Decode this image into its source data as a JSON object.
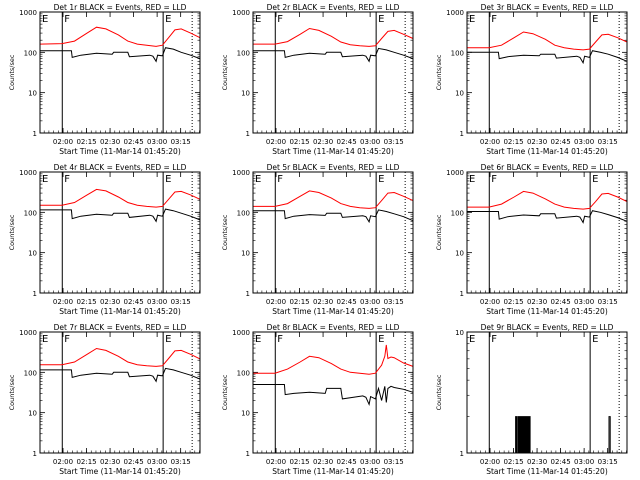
{
  "figure": {
    "panel_title_suffix": "BLACK = Events, RED = LLD",
    "xlabel": "Start Time (11-Mar-14 01:45:20)",
    "ylabel": "Counts/sec",
    "series_colors": {
      "events": "#000000",
      "lld": "#ff0000"
    },
    "x_tick_labels": [
      "02:00",
      "02:15",
      "02:30",
      "02:45",
      "03:00",
      "03:15"
    ],
    "x_tick_minutes": [
      14.67,
      29.67,
      44.67,
      59.67,
      74.67,
      89.67
    ],
    "xlim_minutes": [
      0,
      102
    ],
    "y_scale": "log",
    "markers": [
      {
        "label": "E",
        "minute": 0,
        "style": "dotted"
      },
      {
        "label": "F",
        "minute": 14.2,
        "style": "solid"
      },
      {
        "label": "E",
        "minute": 78.5,
        "style": "solid"
      },
      {
        "label": "",
        "minute": 97,
        "style": "dotted"
      }
    ]
  },
  "chart_data": [
    {
      "type": "line",
      "title": "Det 1r BLACK = Events, RED = LLD",
      "ylim": [
        1,
        1000
      ],
      "y_tick_labels": [
        "1",
        "10",
        "100",
        "1000"
      ],
      "series": [
        {
          "name": "Events",
          "x": [
            0,
            12,
            14.5,
            20,
            20.5,
            26,
            36,
            46,
            47,
            56,
            57,
            70,
            72,
            74,
            75,
            78,
            80,
            85,
            90,
            96,
            102
          ],
          "y": [
            110,
            110,
            110,
            110,
            75,
            85,
            95,
            90,
            100,
            100,
            78,
            85,
            80,
            60,
            85,
            82,
            130,
            120,
            100,
            85,
            70
          ]
        },
        {
          "name": "LLD",
          "x": [
            0,
            14,
            22,
            30,
            36,
            42,
            50,
            56,
            62,
            68,
            74,
            78,
            82,
            86,
            90,
            96,
            102
          ],
          "y": [
            160,
            165,
            190,
            300,
            420,
            380,
            270,
            190,
            160,
            150,
            140,
            150,
            230,
            360,
            380,
            300,
            230
          ]
        }
      ]
    },
    {
      "type": "line",
      "title": "Det 2r BLACK = Events, RED = LLD",
      "ylim": [
        1,
        1000
      ],
      "y_tick_labels": [
        "1",
        "10",
        "100",
        "1000"
      ],
      "series": [
        {
          "name": "Events",
          "x": [
            0,
            12,
            14.5,
            20,
            20.5,
            26,
            36,
            46,
            47,
            56,
            57,
            70,
            72,
            74,
            75,
            78,
            80,
            85,
            90,
            96,
            102
          ],
          "y": [
            110,
            110,
            110,
            110,
            75,
            85,
            95,
            90,
            100,
            100,
            78,
            85,
            80,
            60,
            85,
            82,
            125,
            115,
            100,
            85,
            70
          ]
        },
        {
          "name": "LLD",
          "x": [
            0,
            14,
            22,
            30,
            36,
            42,
            50,
            56,
            62,
            68,
            74,
            78,
            82,
            86,
            90,
            96,
            102
          ],
          "y": [
            160,
            160,
            185,
            280,
            390,
            350,
            250,
            180,
            155,
            145,
            140,
            145,
            220,
            330,
            350,
            280,
            220
          ]
        }
      ]
    },
    {
      "type": "line",
      "title": "Det 3r BLACK = Events, RED = LLD",
      "ylim": [
        1,
        1000
      ],
      "y_tick_labels": [
        "1",
        "10",
        "100",
        "1000"
      ],
      "series": [
        {
          "name": "Events",
          "x": [
            0,
            12,
            14.5,
            20,
            20.5,
            26,
            36,
            46,
            47,
            56,
            57,
            70,
            72,
            74,
            75,
            78,
            80,
            85,
            90,
            96,
            102
          ],
          "y": [
            100,
            100,
            100,
            100,
            70,
            78,
            85,
            82,
            90,
            90,
            72,
            80,
            75,
            55,
            80,
            75,
            110,
            100,
            90,
            75,
            60
          ]
        },
        {
          "name": "LLD",
          "x": [
            0,
            14,
            22,
            30,
            36,
            42,
            50,
            56,
            62,
            68,
            74,
            78,
            82,
            86,
            90,
            96,
            102
          ],
          "y": [
            130,
            130,
            150,
            230,
            320,
            290,
            210,
            150,
            130,
            120,
            115,
            120,
            180,
            270,
            280,
            230,
            180
          ]
        }
      ]
    },
    {
      "type": "line",
      "title": "Det 4r BLACK = Events, RED = LLD",
      "ylim": [
        1,
        1000
      ],
      "y_tick_labels": [
        "1",
        "10",
        "100",
        "1000"
      ],
      "series": [
        {
          "name": "Events",
          "x": [
            0,
            12,
            14.5,
            20,
            20.5,
            26,
            36,
            46,
            47,
            56,
            57,
            70,
            72,
            74,
            75,
            78,
            80,
            85,
            90,
            96,
            102
          ],
          "y": [
            115,
            115,
            115,
            115,
            70,
            80,
            90,
            85,
            95,
            95,
            75,
            85,
            80,
            60,
            85,
            80,
            120,
            110,
            95,
            80,
            65
          ]
        },
        {
          "name": "LLD",
          "x": [
            0,
            14,
            22,
            30,
            36,
            42,
            50,
            56,
            62,
            68,
            74,
            78,
            82,
            86,
            90,
            96,
            102
          ],
          "y": [
            150,
            150,
            175,
            270,
            370,
            340,
            240,
            175,
            150,
            140,
            135,
            140,
            210,
            320,
            330,
            270,
            210
          ]
        }
      ]
    },
    {
      "type": "line",
      "title": "Det 5r BLACK = Events, RED = LLD",
      "ylim": [
        1,
        1000
      ],
      "y_tick_labels": [
        "1",
        "10",
        "100",
        "1000"
      ],
      "series": [
        {
          "name": "Events",
          "x": [
            0,
            12,
            14.5,
            20,
            20.5,
            26,
            36,
            46,
            47,
            56,
            57,
            70,
            72,
            74,
            75,
            78,
            80,
            85,
            90,
            96,
            102
          ],
          "y": [
            110,
            110,
            110,
            110,
            70,
            80,
            88,
            84,
            95,
            95,
            75,
            82,
            78,
            58,
            82,
            78,
            115,
            105,
            92,
            78,
            62
          ]
        },
        {
          "name": "LLD",
          "x": [
            0,
            14,
            22,
            30,
            36,
            42,
            50,
            56,
            62,
            68,
            74,
            78,
            82,
            86,
            90,
            96,
            102
          ],
          "y": [
            140,
            140,
            165,
            250,
            340,
            310,
            225,
            165,
            140,
            130,
            125,
            130,
            195,
            300,
            310,
            250,
            195
          ]
        }
      ]
    },
    {
      "type": "line",
      "title": "Det 6r BLACK = Events, RED = LLD",
      "ylim": [
        1,
        1000
      ],
      "y_tick_labels": [
        "1",
        "10",
        "100",
        "1000"
      ],
      "series": [
        {
          "name": "Events",
          "x": [
            0,
            12,
            14.5,
            20,
            20.5,
            26,
            36,
            46,
            47,
            56,
            57,
            70,
            72,
            74,
            75,
            78,
            80,
            85,
            90,
            96,
            102
          ],
          "y": [
            105,
            105,
            105,
            105,
            68,
            78,
            86,
            82,
            92,
            92,
            72,
            80,
            76,
            56,
            80,
            76,
            110,
            100,
            88,
            74,
            60
          ]
        },
        {
          "name": "LLD",
          "x": [
            0,
            14,
            22,
            30,
            36,
            42,
            50,
            56,
            62,
            68,
            74,
            78,
            82,
            86,
            90,
            96,
            102
          ],
          "y": [
            135,
            135,
            160,
            240,
            330,
            300,
            215,
            160,
            135,
            125,
            120,
            125,
            185,
            285,
            295,
            240,
            185
          ]
        }
      ]
    },
    {
      "type": "line",
      "title": "Det 7r BLACK = Events, RED = LLD",
      "ylim": [
        1,
        1000
      ],
      "y_tick_labels": [
        "1",
        "10",
        "100",
        "1000"
      ],
      "series": [
        {
          "name": "Events",
          "x": [
            0,
            12,
            14.5,
            20,
            20.5,
            26,
            36,
            46,
            47,
            56,
            57,
            70,
            72,
            74,
            75,
            78,
            80,
            85,
            90,
            96,
            102
          ],
          "y": [
            115,
            115,
            115,
            115,
            75,
            85,
            95,
            90,
            100,
            100,
            78,
            85,
            80,
            60,
            85,
            82,
            125,
            115,
            100,
            85,
            68
          ]
        },
        {
          "name": "LLD",
          "x": [
            0,
            14,
            22,
            30,
            36,
            42,
            50,
            56,
            62,
            68,
            74,
            78,
            82,
            86,
            90,
            96,
            102
          ],
          "y": [
            155,
            155,
            180,
            280,
            390,
            350,
            250,
            180,
            155,
            145,
            140,
            145,
            220,
            340,
            350,
            280,
            215
          ]
        }
      ]
    },
    {
      "type": "line",
      "title": "Det 8r BLACK = Events, RED = LLD",
      "ylim": [
        1,
        1000
      ],
      "y_tick_labels": [
        "1",
        "10",
        "100",
        "1000"
      ],
      "series": [
        {
          "name": "Events",
          "x": [
            0,
            12,
            14.5,
            20,
            20.5,
            26,
            36,
            46,
            47,
            56,
            57,
            70,
            72,
            74,
            75,
            78,
            80,
            82,
            84,
            85,
            86,
            88,
            90,
            96,
            102
          ],
          "y": [
            50,
            50,
            50,
            50,
            28,
            30,
            32,
            30,
            40,
            40,
            22,
            26,
            24,
            16,
            25,
            22,
            40,
            20,
            45,
            18,
            40,
            45,
            42,
            38,
            32
          ]
        },
        {
          "name": "LLD",
          "x": [
            0,
            14,
            22,
            30,
            36,
            42,
            50,
            56,
            62,
            68,
            74,
            78,
            82,
            84,
            85,
            86,
            88,
            90,
            96,
            102
          ],
          "y": [
            95,
            95,
            120,
            180,
            250,
            230,
            165,
            120,
            100,
            95,
            90,
            95,
            150,
            250,
            480,
            220,
            240,
            230,
            170,
            140
          ]
        }
      ]
    },
    {
      "type": "line",
      "title": "Det 9r BLACK = Events, RED = LLD",
      "ylim": [
        1,
        10
      ],
      "y_tick_labels": [
        "1",
        "10"
      ],
      "series": [
        {
          "name": "Events",
          "x": [
            0,
            31,
            31,
            31.6,
            31.6,
            32.4,
            32.4,
            33,
            33,
            33.6,
            33.6,
            34.2,
            34.2,
            34.8,
            34.8,
            35.4,
            35.4,
            36,
            36,
            36.6,
            36.6,
            37.2,
            37.2,
            37.8,
            37.8,
            38.4,
            38.4,
            39,
            39,
            39.6,
            39.6,
            40.2,
            40.2,
            41,
            41,
            90.5,
            90.5,
            91.3,
            91.3,
            102
          ],
          "y": [
            1,
            1,
            2,
            2,
            1,
            1,
            2,
            2,
            1,
            1,
            2,
            2,
            1,
            1,
            2,
            2,
            1,
            1,
            2,
            2,
            1,
            1,
            2,
            2,
            1,
            1,
            2,
            2,
            1,
            1,
            2,
            2,
            1,
            1,
            1,
            1,
            2,
            2,
            1,
            1
          ]
        },
        {
          "name": "LLD",
          "x": [],
          "y": []
        }
      ]
    }
  ]
}
